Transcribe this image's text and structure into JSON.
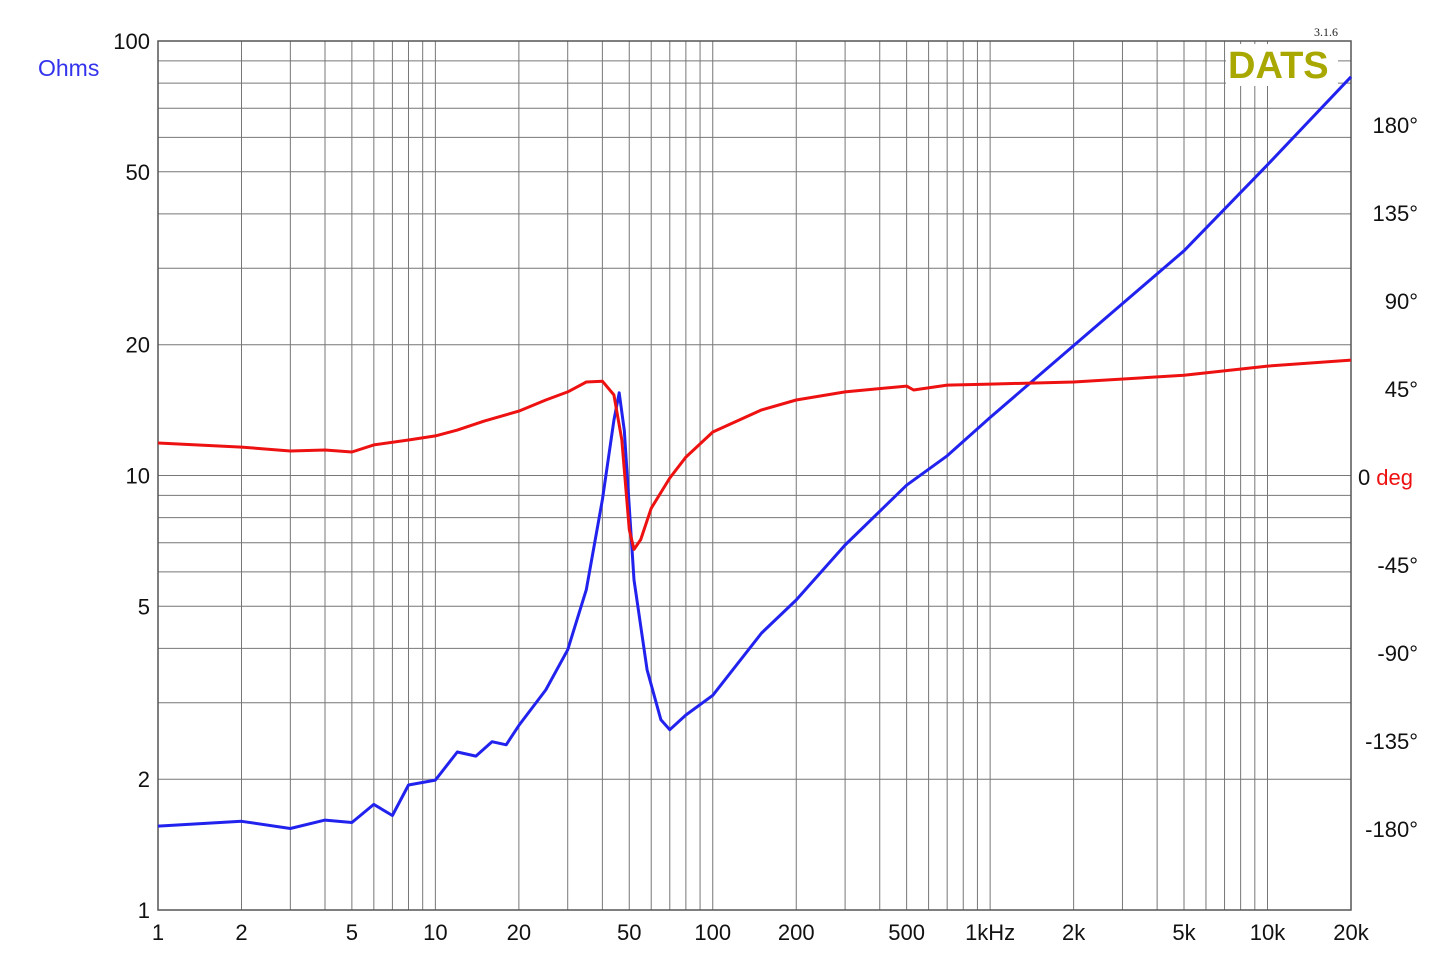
{
  "chart_data": {
    "type": "line",
    "version_label": "3.1.6",
    "logo_text": "DATS",
    "x_scale": "log",
    "xlim": [
      1,
      20000
    ],
    "x_tick_labels": [
      {
        "v": 1,
        "t": "1"
      },
      {
        "v": 2,
        "t": "2"
      },
      {
        "v": 5,
        "t": "5"
      },
      {
        "v": 10,
        "t": "10"
      },
      {
        "v": 20,
        "t": "20"
      },
      {
        "v": 50,
        "t": "50"
      },
      {
        "v": 100,
        "t": "100"
      },
      {
        "v": 200,
        "t": "200"
      },
      {
        "v": 500,
        "t": "500"
      },
      {
        "v": 1000,
        "t": "1kHz"
      },
      {
        "v": 2000,
        "t": "2k"
      },
      {
        "v": 5000,
        "t": "5k"
      },
      {
        "v": 10000,
        "t": "10k"
      },
      {
        "v": 20000,
        "t": "20k"
      }
    ],
    "y_left": {
      "label": "Ohms",
      "scale": "log",
      "lim": [
        1,
        100
      ],
      "ticks": [
        1,
        2,
        5,
        10,
        20,
        50,
        100
      ]
    },
    "y_right": {
      "zero_label": "0",
      "unit_label": "deg",
      "lim": [
        -180,
        180
      ],
      "ticks": [
        "180°",
        "135°",
        "90°",
        "45°",
        "-45°",
        "-90°",
        "-135°",
        "-180°"
      ],
      "tick_values": [
        180,
        135,
        90,
        45,
        -45,
        -90,
        -135,
        -180
      ]
    },
    "grid": true,
    "colors": {
      "impedance": "#2222ee",
      "phase": "#ee1111",
      "logo": "#a8a800",
      "left_label": "#3333ee",
      "deg_label": "#ee1111"
    },
    "series": [
      {
        "axis": "left",
        "color": "#2222ee",
        "x": [
          1,
          2,
          3,
          4,
          5,
          6,
          7,
          8,
          10,
          12,
          14,
          16,
          18,
          20,
          25,
          30,
          35,
          40,
          44,
          46,
          48,
          52,
          58,
          65,
          70,
          80,
          100,
          150,
          200,
          300,
          500,
          700,
          1000,
          2000,
          5000,
          10000,
          20000
        ],
        "y": [
          1.56,
          1.6,
          1.54,
          1.61,
          1.59,
          1.75,
          1.65,
          1.94,
          1.99,
          2.31,
          2.26,
          2.44,
          2.4,
          2.66,
          3.21,
          3.97,
          5.46,
          8.8,
          13.4,
          15.5,
          12.7,
          5.75,
          3.57,
          2.74,
          2.6,
          2.81,
          3.12,
          4.34,
          5.17,
          6.92,
          9.5,
          11.1,
          13.6,
          19.9,
          32.9,
          51.9,
          82.7
        ]
      },
      {
        "axis": "right",
        "color": "#ee1111",
        "x": [
          1,
          2,
          3,
          4,
          5,
          6,
          8,
          10,
          12,
          15,
          20,
          25,
          30,
          35,
          40,
          44,
          47,
          50,
          52,
          55,
          60,
          70,
          80,
          100,
          150,
          200,
          300,
          500,
          530,
          700,
          1000,
          2000,
          5000,
          10000,
          20000
        ],
        "y": [
          17.4,
          15.3,
          13.3,
          13.8,
          12.8,
          16.4,
          18.9,
          21,
          24,
          28.6,
          33.7,
          39.4,
          43.5,
          48.6,
          49,
          42,
          19,
          -27,
          -37,
          -32,
          -16,
          -0.5,
          10.2,
          23,
          34.3,
          39.4,
          43.5,
          46.5,
          44.5,
          47,
          47.5,
          48.6,
          52,
          56.7,
          59.8
        ]
      }
    ]
  }
}
